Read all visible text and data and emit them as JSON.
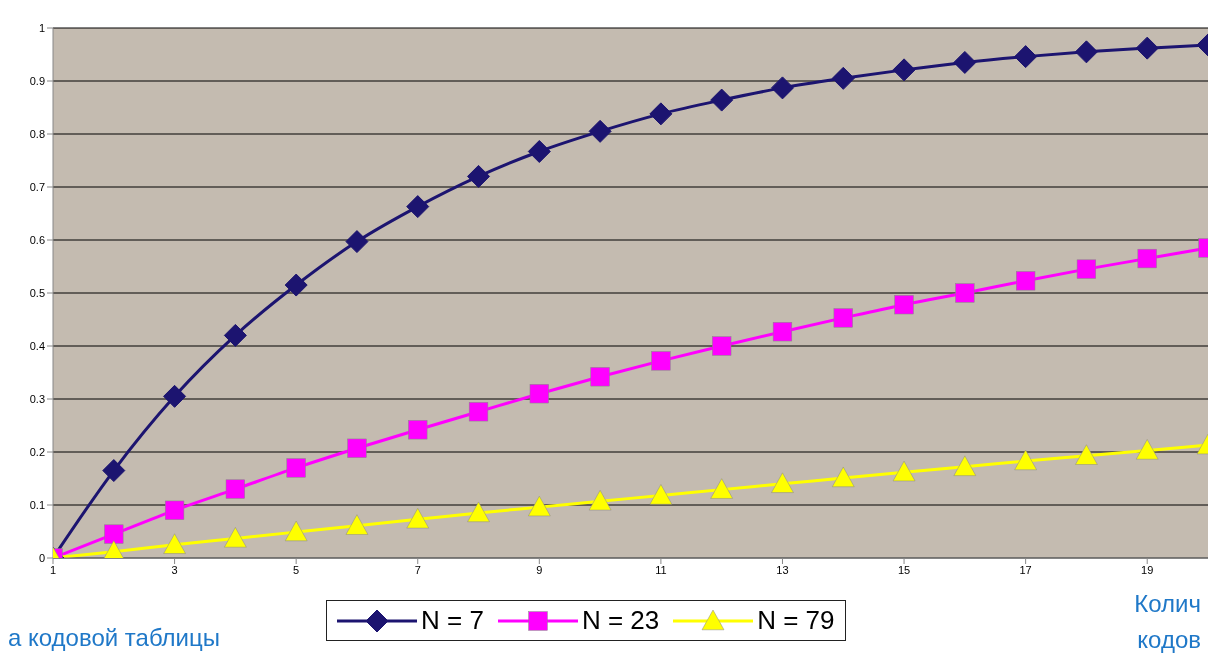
{
  "chart_data": {
    "type": "line",
    "x": [
      1,
      2,
      3,
      4,
      5,
      6,
      7,
      8,
      9,
      10,
      11,
      12,
      13,
      14,
      15,
      16,
      17,
      18,
      19,
      20
    ],
    "series": [
      {
        "name": "N = 7",
        "color": "#1c1470",
        "marker": "diamond",
        "values": [
          0,
          0.165,
          0.305,
          0.42,
          0.515,
          0.597,
          0.663,
          0.72,
          0.767,
          0.805,
          0.838,
          0.864,
          0.887,
          0.905,
          0.921,
          0.935,
          0.946,
          0.955,
          0.962,
          0.968
        ]
      },
      {
        "name": "N = 23",
        "color": "#ff00ff",
        "marker": "square",
        "values": [
          0,
          0.045,
          0.09,
          0.13,
          0.17,
          0.207,
          0.242,
          0.276,
          0.31,
          0.342,
          0.372,
          0.4,
          0.427,
          0.453,
          0.478,
          0.5,
          0.523,
          0.545,
          0.565,
          0.585
        ]
      },
      {
        "name": "N = 79",
        "color": "#ffff00",
        "marker": "triangle",
        "values": [
          0,
          0.012,
          0.025,
          0.037,
          0.049,
          0.061,
          0.073,
          0.085,
          0.096,
          0.107,
          0.118,
          0.129,
          0.14,
          0.151,
          0.162,
          0.172,
          0.183,
          0.193,
          0.203,
          0.213
        ]
      }
    ],
    "xlim": [
      1,
      20
    ],
    "xticks": [
      1,
      3,
      5,
      7,
      9,
      11,
      13,
      15,
      17,
      19
    ],
    "ylim": [
      0,
      1
    ],
    "yticks": [
      0,
      0.1,
      0.2,
      0.3,
      0.4,
      0.5,
      0.6,
      0.7,
      0.8,
      0.9,
      1
    ],
    "grid": "y",
    "legend": "bottom",
    "line_style": "solid",
    "annotations": [
      "а кодовой таблицы",
      "Колич",
      "кодов"
    ]
  }
}
